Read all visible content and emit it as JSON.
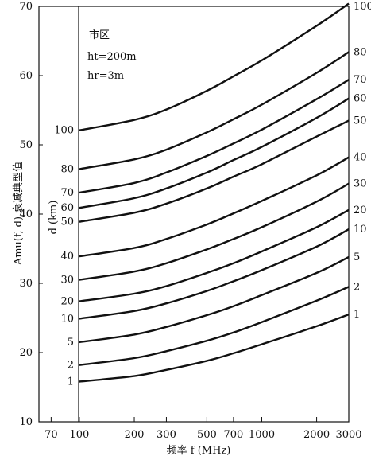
{
  "chart_data": {
    "type": "line",
    "x_scale": "log",
    "xlim": [
      60,
      3000
    ],
    "ylim": [
      10,
      70
    ],
    "xlabel": "频率 f (MHz)",
    "ylabel": "Amu(f, d) 衰减典型值",
    "curve_group_label": "d (km)",
    "annotations": [
      "市区",
      "ht=200m",
      "hr=3m"
    ],
    "x_ticks": [
      70,
      100,
      200,
      300,
      500,
      700,
      1000,
      2000,
      3000
    ],
    "y_ticks": [
      10,
      20,
      30,
      40,
      50,
      60,
      70
    ],
    "series": [
      {
        "name": "1",
        "x": [
          100,
          200,
          300,
          500,
          700,
          1000,
          2000,
          3000
        ],
        "y": [
          15.8,
          16.6,
          17.5,
          18.8,
          19.9,
          21.2,
          23.8,
          25.5
        ]
      },
      {
        "name": "2",
        "x": [
          100,
          200,
          300,
          500,
          700,
          1000,
          2000,
          3000
        ],
        "y": [
          18.2,
          19.2,
          20.2,
          21.7,
          22.9,
          24.4,
          27.5,
          29.5
        ]
      },
      {
        "name": "5",
        "x": [
          100,
          200,
          300,
          500,
          700,
          1000,
          2000,
          3000
        ],
        "y": [
          21.5,
          22.6,
          23.7,
          25.4,
          26.7,
          28.3,
          31.5,
          33.8
        ]
      },
      {
        "name": "10",
        "x": [
          100,
          200,
          300,
          500,
          700,
          1000,
          2000,
          3000
        ],
        "y": [
          24.9,
          26.0,
          27.1,
          28.9,
          30.3,
          31.9,
          35.3,
          37.8
        ]
      },
      {
        "name": "20",
        "x": [
          100,
          200,
          300,
          500,
          700,
          1000,
          2000,
          3000
        ],
        "y": [
          27.4,
          28.5,
          29.6,
          31.5,
          32.9,
          34.6,
          38.1,
          40.6
        ]
      },
      {
        "name": "30",
        "x": [
          100,
          200,
          300,
          500,
          700,
          1000,
          2000,
          3000
        ],
        "y": [
          30.5,
          31.7,
          32.9,
          34.9,
          36.4,
          38.1,
          41.8,
          44.4
        ]
      },
      {
        "name": "40",
        "x": [
          100,
          200,
          300,
          500,
          700,
          1000,
          2000,
          3000
        ],
        "y": [
          33.9,
          35.1,
          36.4,
          38.5,
          40.1,
          41.9,
          45.6,
          48.2
        ]
      },
      {
        "name": "50",
        "x": [
          100,
          200,
          300,
          500,
          700,
          1000,
          2000,
          3000
        ],
        "y": [
          38.9,
          40.2,
          41.5,
          43.7,
          45.4,
          47.2,
          51.2,
          53.5
        ]
      },
      {
        "name": "60",
        "x": [
          100,
          200,
          300,
          500,
          700,
          1000,
          2000,
          3000
        ],
        "y": [
          40.9,
          42.3,
          43.7,
          46.0,
          47.8,
          49.7,
          53.9,
          56.7
        ]
      },
      {
        "name": "70",
        "x": [
          100,
          200,
          300,
          500,
          700,
          1000,
          2000,
          3000
        ],
        "y": [
          43.1,
          44.5,
          46.0,
          48.4,
          50.2,
          52.2,
          56.6,
          59.4
        ]
      },
      {
        "name": "80",
        "x": [
          100,
          200,
          300,
          500,
          700,
          1000,
          2000,
          3000
        ],
        "y": [
          46.5,
          47.9,
          49.3,
          51.8,
          53.7,
          55.8,
          60.4,
          63.4
        ]
      },
      {
        "name": "100",
        "x": [
          100,
          200,
          300,
          500,
          700,
          1000,
          2000,
          3000
        ],
        "y": [
          52.1,
          53.6,
          55.1,
          57.8,
          59.9,
          62.2,
          67.2,
          70.4
        ]
      }
    ],
    "grid": false,
    "legend": "curve labels at left and right ends of each curve"
  }
}
